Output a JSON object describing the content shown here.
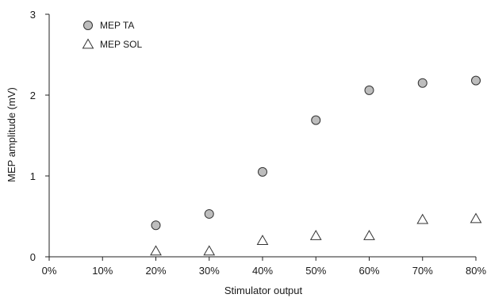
{
  "chart_data": {
    "type": "scatter",
    "title": "",
    "xlabel": "Stimulator output",
    "ylabel": "MEP amplitude (mV)",
    "x_ticks": [
      "0%",
      "10%",
      "20%",
      "30%",
      "40%",
      "50%",
      "60%",
      "70%",
      "80%"
    ],
    "y_ticks": [
      "0",
      "1",
      "2",
      "3"
    ],
    "xlim": [
      0,
      80
    ],
    "ylim": [
      0,
      3
    ],
    "grid": false,
    "legend_position": "top-left",
    "x": [
      20,
      30,
      40,
      50,
      60,
      70,
      80
    ],
    "series": [
      {
        "name": "MEP TA",
        "marker": "circle",
        "color": "#bdbdbd",
        "values": [
          0.39,
          0.53,
          1.05,
          1.69,
          2.06,
          2.15,
          2.18
        ]
      },
      {
        "name": "MEP SOL",
        "marker": "triangle",
        "color": "#ffffff",
        "values": [
          0.07,
          0.07,
          0.2,
          0.26,
          0.26,
          0.46,
          0.47
        ]
      }
    ]
  }
}
